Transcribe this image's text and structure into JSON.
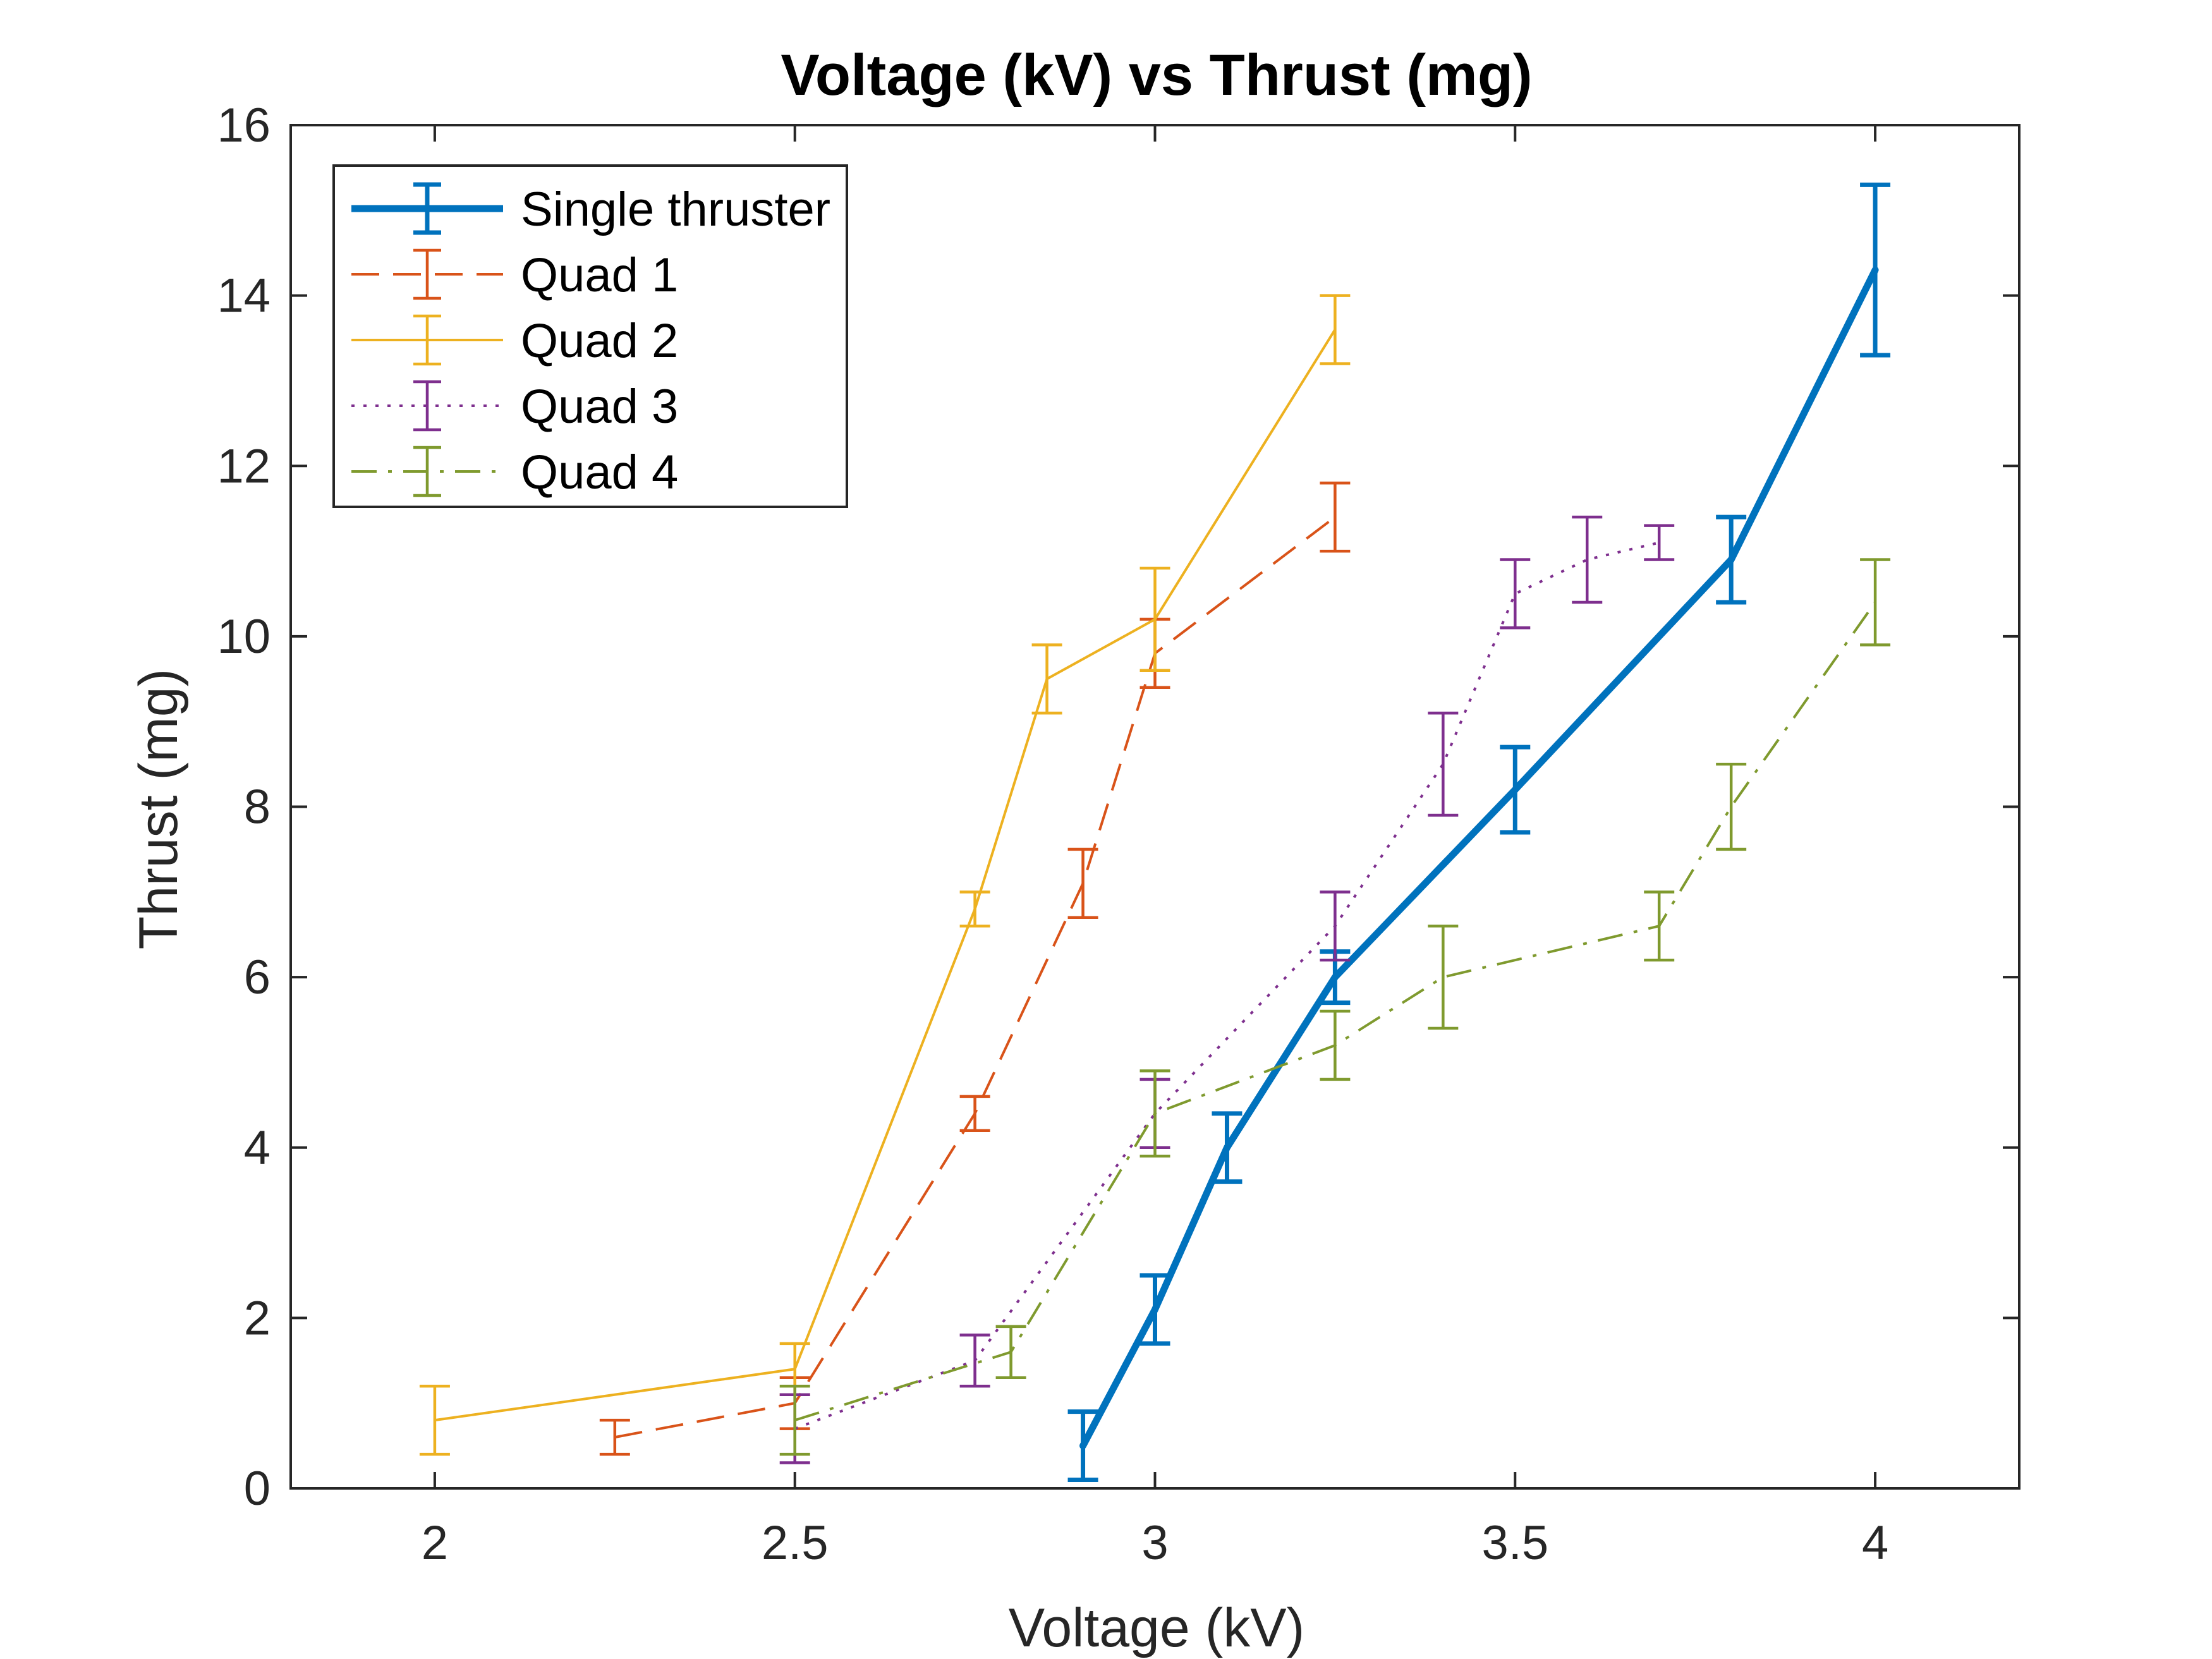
{
  "chart_data": {
    "type": "line",
    "title": "Voltage (kV) vs Thrust (mg)",
    "xlabel": "Voltage (kV)",
    "ylabel": "Thrust (mg)",
    "xlim": [
      1.8,
      4.2
    ],
    "ylim": [
      0,
      16
    ],
    "xticks": [
      2,
      2.5,
      3,
      3.5,
      4
    ],
    "xtick_labels": [
      "2",
      "2.5",
      "3",
      "3.5",
      "4"
    ],
    "yticks": [
      0,
      2,
      4,
      6,
      8,
      10,
      12,
      14,
      16
    ],
    "ytick_labels": [
      "0",
      "2",
      "4",
      "6",
      "8",
      "10",
      "12",
      "14",
      "16"
    ],
    "grid": false,
    "legend_position": "top-left",
    "series": [
      {
        "name": "Single thruster",
        "color": "#0072BD",
        "line_style": "solid",
        "weight": "thick",
        "points": [
          {
            "x": 2.9,
            "y": 0.5,
            "err": 0.4
          },
          {
            "x": 3.0,
            "y": 2.1,
            "err": 0.4
          },
          {
            "x": 3.1,
            "y": 4.0,
            "err": 0.4
          },
          {
            "x": 3.25,
            "y": 6.0,
            "err": 0.3
          },
          {
            "x": 3.5,
            "y": 8.2,
            "err": 0.5
          },
          {
            "x": 3.8,
            "y": 10.9,
            "err": 0.5
          },
          {
            "x": 4.0,
            "y": 14.3,
            "err": 1.0
          }
        ]
      },
      {
        "name": "Quad 1",
        "color": "#D95319",
        "line_style": "dashed",
        "weight": "thin",
        "points": [
          {
            "x": 2.25,
            "y": 0.6,
            "err": 0.2
          },
          {
            "x": 2.5,
            "y": 1.0,
            "err": 0.3
          },
          {
            "x": 2.75,
            "y": 4.4,
            "err": 0.2
          },
          {
            "x": 2.9,
            "y": 7.1,
            "err": 0.4
          },
          {
            "x": 3.0,
            "y": 9.8,
            "err": 0.4
          },
          {
            "x": 3.25,
            "y": 11.4,
            "err": 0.4
          }
        ]
      },
      {
        "name": "Quad 2",
        "color": "#EDB120",
        "line_style": "solid",
        "weight": "thin",
        "points": [
          {
            "x": 2.0,
            "y": 0.8,
            "err": 0.4
          },
          {
            "x": 2.5,
            "y": 1.4,
            "err": 0.3
          },
          {
            "x": 2.75,
            "y": 6.8,
            "err": 0.2
          },
          {
            "x": 2.85,
            "y": 9.5,
            "err": 0.4
          },
          {
            "x": 3.0,
            "y": 10.2,
            "err": 0.6
          },
          {
            "x": 3.25,
            "y": 13.6,
            "err": 0.4
          }
        ]
      },
      {
        "name": "Quad 3",
        "color": "#7E2F8E",
        "line_style": "dotted",
        "weight": "thin",
        "points": [
          {
            "x": 2.5,
            "y": 0.7,
            "err": 0.4
          },
          {
            "x": 2.75,
            "y": 1.5,
            "err": 0.3
          },
          {
            "x": 3.0,
            "y": 4.4,
            "err": 0.4
          },
          {
            "x": 3.25,
            "y": 6.6,
            "err": 0.4
          },
          {
            "x": 3.4,
            "y": 8.5,
            "err": 0.6
          },
          {
            "x": 3.5,
            "y": 10.5,
            "err": 0.4
          },
          {
            "x": 3.6,
            "y": 10.9,
            "err": 0.5
          },
          {
            "x": 3.7,
            "y": 11.1,
            "err": 0.2
          }
        ]
      },
      {
        "name": "Quad 4",
        "color": "#77AC30",
        "legend_color": "#77AC30",
        "color_display": "#7F9A2E",
        "line_style": "dashdot",
        "weight": "thin",
        "points": [
          {
            "x": 2.5,
            "y": 0.8,
            "err": 0.4
          },
          {
            "x": 2.8,
            "y": 1.6,
            "err": 0.3
          },
          {
            "x": 3.0,
            "y": 4.4,
            "err": 0.5
          },
          {
            "x": 3.25,
            "y": 5.2,
            "err": 0.4
          },
          {
            "x": 3.4,
            "y": 6.0,
            "err": 0.6
          },
          {
            "x": 3.7,
            "y": 6.6,
            "err": 0.4
          },
          {
            "x": 3.8,
            "y": 8.0,
            "err": 0.5
          },
          {
            "x": 4.0,
            "y": 10.4,
            "err": 0.5
          }
        ]
      }
    ]
  }
}
